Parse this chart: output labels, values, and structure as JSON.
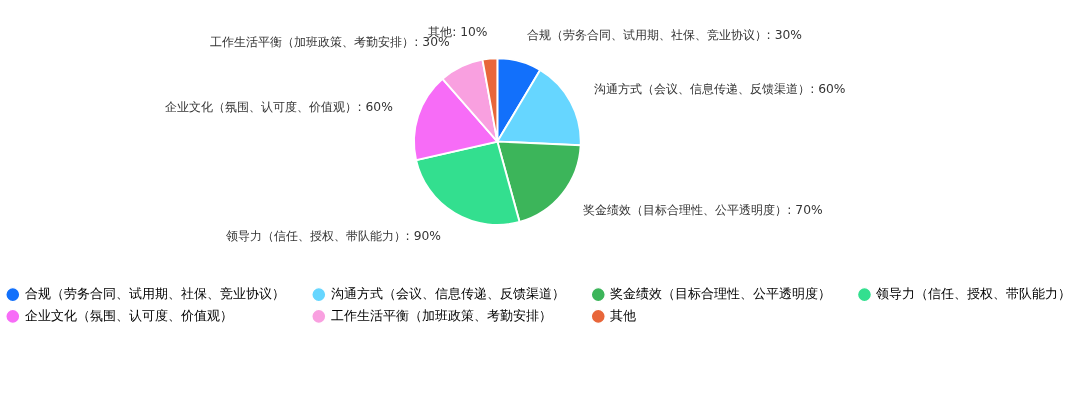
{
  "chart_data": {
    "type": "pie",
    "categories": [
      "合规（劳务合同、试用期、社保、竞业协议）",
      "沟通方式（会议、信息传递、反馈渠道）",
      "奖金绩效（目标合理性、公平透明度）",
      "领导力（信任、授权、带队能力）",
      "企业文化（氛围、认可度、价值观）",
      "工作生活平衡（加班政策、考勤安排）",
      "其他"
    ],
    "values": [
      30,
      60,
      70,
      90,
      60,
      30,
      10
    ],
    "value_labels": [
      ": 30%",
      ": 60%",
      ": 70%",
      ": 90%",
      ": 60%",
      ": 30%",
      ": 10%"
    ],
    "colors": [
      "#1270fb",
      "#66d6ff",
      "#3cb55a",
      "#33df8f",
      "#f76cf7",
      "#f9a0e0",
      "#e8663a"
    ],
    "legend": "bottom"
  }
}
